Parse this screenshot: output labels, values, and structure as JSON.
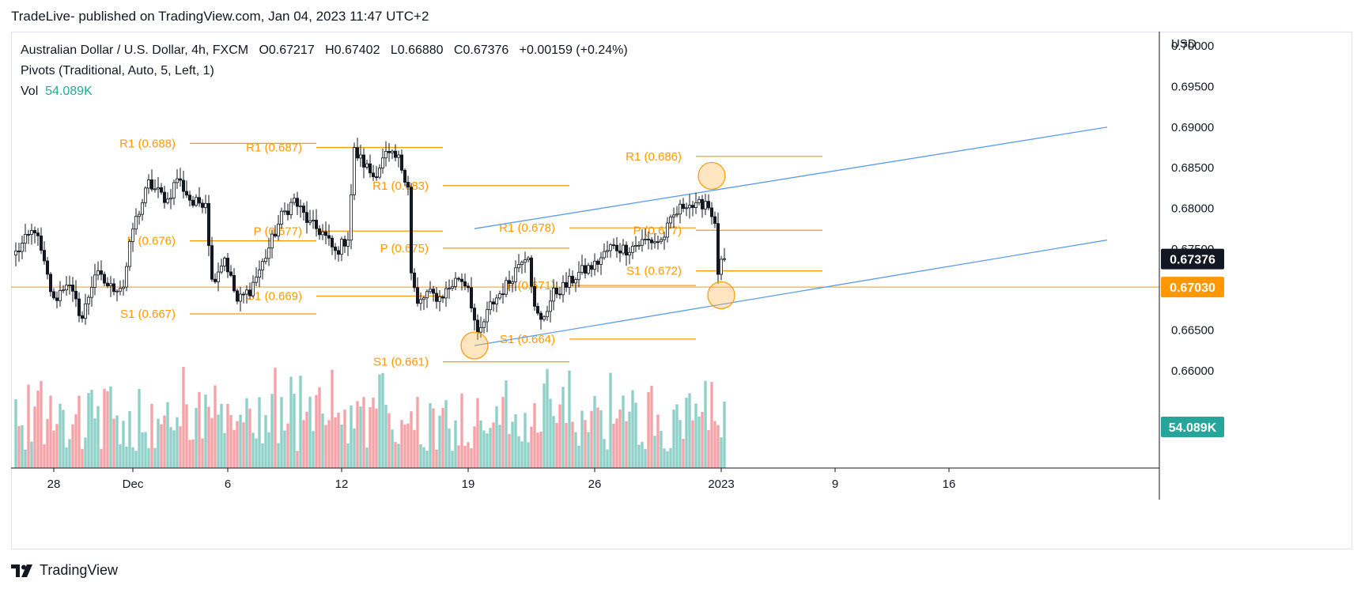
{
  "header": {
    "publisher_line": "TradeLive- published on TradingView.com, Jan 04, 2023 11:47 UTC+2"
  },
  "legend": {
    "symbol": "Australian Dollar / U.S. Dollar, 4h, FXCM",
    "o_label": "O",
    "o": "0.67217",
    "h_label": "H",
    "h": "0.67402",
    "l_label": "L",
    "l": "0.66880",
    "c_label": "C",
    "c": "0.67376",
    "change": "+0.00159 (+0.24%)",
    "pivots": "Pivots (Traditional, Auto, 5, Left, 1)",
    "vol_label": "Vol",
    "vol_value": "54.089K"
  },
  "footer": {
    "brand": "TradingView"
  },
  "colors": {
    "up": "#26a69a",
    "down": "#131722",
    "vol_up": "#8fd1c9",
    "vol_down": "#f4a3a7",
    "pivot": "#ff9800",
    "trend": "#5b9cf0",
    "grid_text": "#131722"
  },
  "chart_data": {
    "type": "candlestick",
    "price_axis": {
      "unit": "USD",
      "ylim": [
        0.656,
        0.7005
      ],
      "ticks": [
        "0.70000",
        "0.69500",
        "0.69000",
        "0.68500",
        "0.68000",
        "0.67500",
        "0.67000",
        "0.66500",
        "0.66000"
      ]
    },
    "x_axis": {
      "ticks": [
        "28",
        "Dec",
        "6",
        "12",
        "19",
        "26",
        "2023",
        "9",
        "16"
      ],
      "tick_bar_index": [
        12,
        37,
        67,
        103,
        143,
        183,
        223,
        259,
        295
      ]
    },
    "current_price": {
      "label": "0.67376",
      "value": 0.67376
    },
    "horizontal_line": {
      "label": "0.67030",
      "value": 0.6703
    },
    "volume_badge": "54.089K",
    "pivots": [
      {
        "label": "R1 (0.688)",
        "value": 0.688,
        "from": 55,
        "to": 95
      },
      {
        "label": "P (0.676)",
        "value": 0.676,
        "from": 55,
        "to": 95
      },
      {
        "label": "S1 (0.667)",
        "value": 0.667,
        "from": 55,
        "to": 95
      },
      {
        "label": "R1 (0.687)",
        "value": 0.6875,
        "from": 95,
        "to": 135
      },
      {
        "label": "P (0.677)",
        "value": 0.6772,
        "from": 95,
        "to": 135
      },
      {
        "label": "S1 (0.669)",
        "value": 0.6692,
        "from": 95,
        "to": 135
      },
      {
        "label": "R1 (0.683)",
        "value": 0.6828,
        "from": 135,
        "to": 175
      },
      {
        "label": "P (0.675)",
        "value": 0.6751,
        "from": 135,
        "to": 175
      },
      {
        "label": "S1 (0.661)",
        "value": 0.6611,
        "from": 135,
        "to": 175
      },
      {
        "label": "R1 (0.678)",
        "value": 0.6776,
        "from": 175,
        "to": 215
      },
      {
        "label": "P (0.671)",
        "value": 0.6705,
        "from": 175,
        "to": 215
      },
      {
        "label": "S1 (0.664)",
        "value": 0.6639,
        "from": 175,
        "to": 215
      },
      {
        "label": "R1 (0.686)",
        "value": 0.6864,
        "from": 215,
        "to": 255
      },
      {
        "label": "P (0.677)",
        "value": 0.6773,
        "from": 215,
        "to": 255
      },
      {
        "label": "S1 (0.672)",
        "value": 0.6723,
        "from": 215,
        "to": 255
      }
    ],
    "trendlines": [
      {
        "from": [
          145,
          0.6775
        ],
        "to": [
          295,
          0.69
        ]
      },
      {
        "from": [
          145,
          0.6631
        ],
        "to": [
          295,
          0.6761
        ]
      }
    ],
    "highlight_circles": [
      {
        "x": 145,
        "y": 0.6631
      },
      {
        "x": 220,
        "y": 0.684
      },
      {
        "x": 223,
        "y": 0.6693
      }
    ],
    "anchors": [
      {
        "i": 0,
        "p": 0.6745
      },
      {
        "i": 6,
        "p": 0.6775
      },
      {
        "i": 12,
        "p": 0.6685
      },
      {
        "i": 16,
        "p": 0.671
      },
      {
        "i": 21,
        "p": 0.6665
      },
      {
        "i": 25,
        "p": 0.672
      },
      {
        "i": 30,
        "p": 0.6702
      },
      {
        "i": 34,
        "p": 0.6705
      },
      {
        "i": 37,
        "p": 0.6775
      },
      {
        "i": 42,
        "p": 0.683
      },
      {
        "i": 48,
        "p": 0.681
      },
      {
        "i": 51,
        "p": 0.6838
      },
      {
        "i": 56,
        "p": 0.6805
      },
      {
        "i": 60,
        "p": 0.681
      },
      {
        "i": 62,
        "p": 0.671
      },
      {
        "i": 66,
        "p": 0.674
      },
      {
        "i": 70,
        "p": 0.6685
      },
      {
        "i": 74,
        "p": 0.67
      },
      {
        "i": 78,
        "p": 0.6732
      },
      {
        "i": 84,
        "p": 0.679
      },
      {
        "i": 88,
        "p": 0.681
      },
      {
        "i": 93,
        "p": 0.678
      },
      {
        "i": 97,
        "p": 0.677
      },
      {
        "i": 101,
        "p": 0.6745
      },
      {
        "i": 105,
        "p": 0.6765
      },
      {
        "i": 107,
        "p": 0.687
      },
      {
        "i": 113,
        "p": 0.684
      },
      {
        "i": 117,
        "p": 0.6865
      },
      {
        "i": 121,
        "p": 0.686
      },
      {
        "i": 124,
        "p": 0.683
      },
      {
        "i": 125,
        "p": 0.672
      },
      {
        "i": 127,
        "p": 0.668
      },
      {
        "i": 130,
        "p": 0.6695
      },
      {
        "i": 134,
        "p": 0.669
      },
      {
        "i": 140,
        "p": 0.6715
      },
      {
        "i": 143,
        "p": 0.6705
      },
      {
        "i": 146,
        "p": 0.664
      },
      {
        "i": 150,
        "p": 0.668
      },
      {
        "i": 156,
        "p": 0.671
      },
      {
        "i": 160,
        "p": 0.674
      },
      {
        "i": 162,
        "p": 0.6745
      },
      {
        "i": 164,
        "p": 0.6675
      },
      {
        "i": 166,
        "p": 0.666
      },
      {
        "i": 170,
        "p": 0.6695
      },
      {
        "i": 174,
        "p": 0.6705
      },
      {
        "i": 178,
        "p": 0.672
      },
      {
        "i": 183,
        "p": 0.673
      },
      {
        "i": 188,
        "p": 0.6752
      },
      {
        "i": 193,
        "p": 0.675
      },
      {
        "i": 199,
        "p": 0.676
      },
      {
        "i": 204,
        "p": 0.676
      },
      {
        "i": 208,
        "p": 0.679
      },
      {
        "i": 212,
        "p": 0.6808
      },
      {
        "i": 215,
        "p": 0.68
      },
      {
        "i": 218,
        "p": 0.681
      },
      {
        "i": 220,
        "p": 0.6795
      },
      {
        "i": 221,
        "p": 0.6775
      },
      {
        "i": 222,
        "p": 0.6722
      },
      {
        "i": 224,
        "p": 0.6738
      }
    ],
    "volume_range": {
      "min": 0.15,
      "max": 1.0
    }
  }
}
